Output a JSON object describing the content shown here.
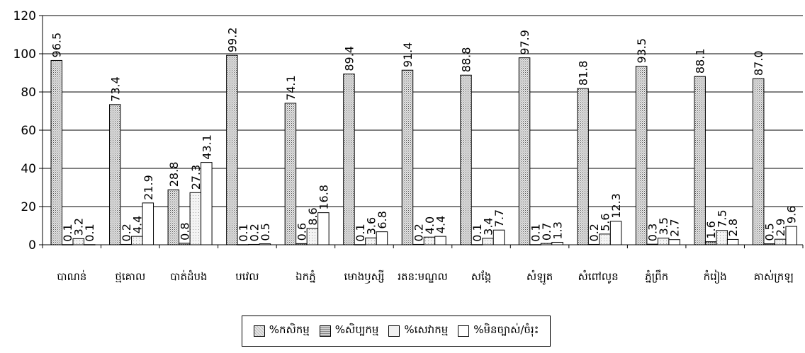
{
  "chart_data": {
    "type": "bar",
    "title": "",
    "xlabel": "",
    "ylabel": "",
    "ylim": [
      0,
      120
    ],
    "yticks": [
      0,
      20,
      40,
      60,
      80,
      100,
      120
    ],
    "grid": "horizontal",
    "legend_position": "bottom",
    "categories": [
      "បាណន់",
      "ថ្មគោល",
      "បាត់ដំបង",
      "បវេល",
      "ឯកភ្នំ",
      "មោងឫស្សី",
      "រតនៈមណ្ឌល",
      "សង្កែ",
      "សំឡូត",
      "សំពៅលូន",
      "ភ្នំព្រឹក",
      "កំរៀង",
      "គាស់ក្រឡ"
    ],
    "series": [
      {
        "name": "%កសិកម្ម",
        "fill": "#d8d8d8",
        "pattern": "dots-dense",
        "values": [
          96.5,
          73.4,
          28.8,
          99.2,
          74.1,
          89.4,
          91.4,
          88.8,
          97.9,
          81.8,
          93.5,
          88.1,
          87.0
        ],
        "labels": [
          "96.5",
          "73.4",
          "28.8",
          "99.2",
          "74.1",
          "89.4",
          "91.4",
          "88.8",
          "97.9",
          "81.8",
          "93.5",
          "88.1",
          "87.0"
        ]
      },
      {
        "name": "%សិប្បកម្ម",
        "fill": "#bdbdbd",
        "pattern": "dots-grid",
        "values": [
          0.1,
          0.2,
          0.8,
          0.1,
          0.6,
          0.1,
          0.2,
          0.1,
          0.1,
          0.2,
          0.3,
          1.6,
          0.5
        ],
        "labels": [
          "0.1",
          "0.2",
          "0.8",
          "0.1",
          "0.6",
          "0.1",
          "0.2",
          "0.1",
          "0.1",
          "0.2",
          "0.3",
          "1.6",
          "0.5"
        ]
      },
      {
        "name": "%សេវាកម្ម",
        "fill": "#efefef",
        "pattern": "dots-light",
        "values": [
          3.2,
          4.4,
          27.3,
          0.2,
          8.6,
          3.6,
          4.0,
          3.4,
          0.7,
          5.6,
          3.5,
          7.5,
          2.9
        ],
        "labels": [
          "3.2",
          "4.4",
          "27.3",
          "0.2",
          "8.6",
          "3.6",
          "4.0",
          "3.4",
          "0.7",
          "5.6",
          "3.5",
          "7.5",
          "2.9"
        ]
      },
      {
        "name": "%មិនច្បាស់/ចំរុះ",
        "fill": "#ffffff",
        "pattern": "none",
        "values": [
          0.1,
          21.9,
          43.1,
          0.5,
          16.8,
          6.8,
          4.4,
          7.7,
          1.3,
          12.3,
          2.7,
          2.8,
          9.6
        ],
        "labels": [
          "0.1",
          "21.9",
          "43.1",
          "0.5",
          "16.8",
          "6.8",
          "4.4",
          "7.7",
          "1.3",
          "12.3",
          "2.7",
          "2.8",
          "9.6"
        ]
      }
    ]
  }
}
